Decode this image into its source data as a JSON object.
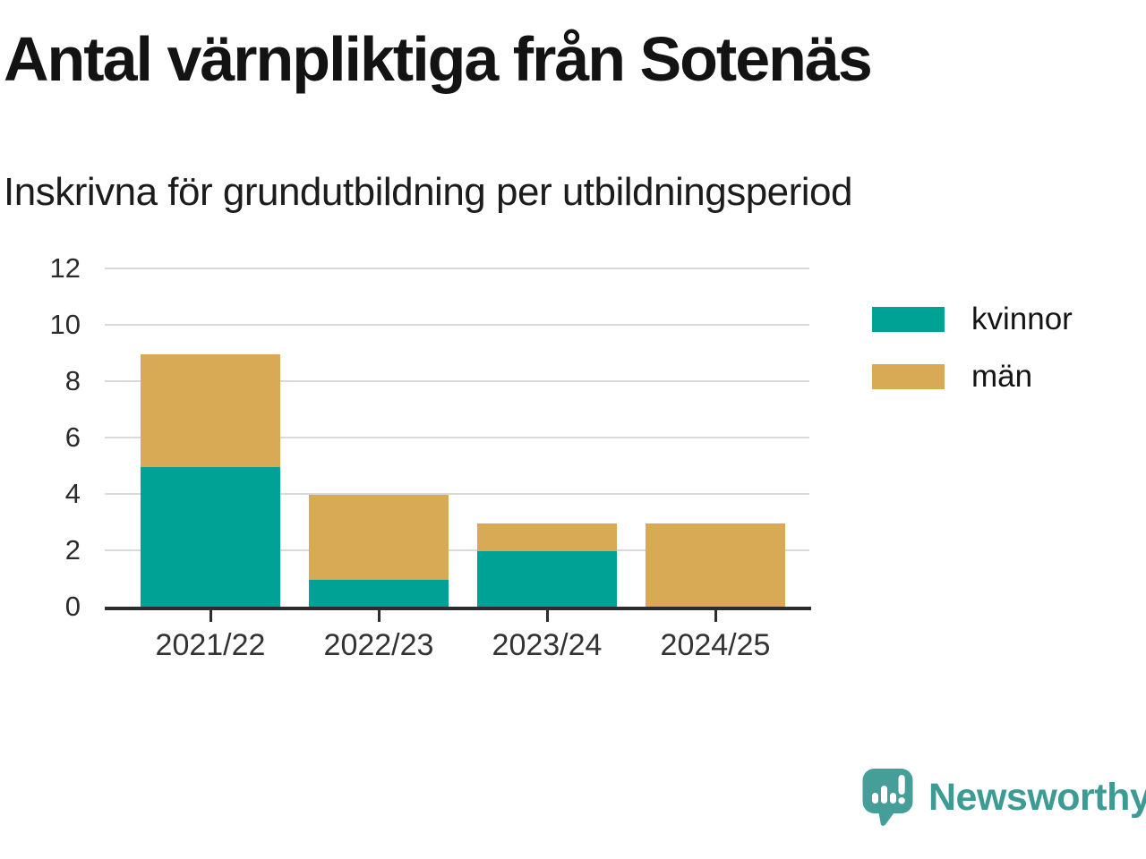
{
  "chart_data": {
    "type": "bar",
    "stacked": true,
    "title": "Antal värnpliktiga från Sotenäs",
    "subtitle": "Inskrivna för grundutbildning per utbildningsperiod",
    "categories": [
      "2021/22",
      "2022/23",
      "2023/24",
      "2024/25"
    ],
    "series": [
      {
        "name": "kvinnor",
        "color": "#00a296",
        "values": [
          5,
          1,
          2,
          0
        ]
      },
      {
        "name": "män",
        "color": "#d9aa55",
        "values": [
          4,
          3,
          1,
          3
        ]
      }
    ],
    "totals": [
      9,
      4,
      3,
      3
    ],
    "ylim": [
      0,
      12
    ],
    "yticks": [
      0,
      2,
      4,
      6,
      8,
      10,
      12
    ],
    "xlabel": "",
    "ylabel": "",
    "grid": true,
    "legend_position": "right",
    "colors": {
      "gridline": "#d9d9d9",
      "axis": "#2d2d2d",
      "ytick_label": "#2b2b2b",
      "xtick_label": "#333333",
      "legend_label": "#141414"
    }
  },
  "footer": {
    "brand": "Newsworthy",
    "brand_color": "#3d9b95",
    "logo_icon": "speech-bubble-bar-chart"
  }
}
